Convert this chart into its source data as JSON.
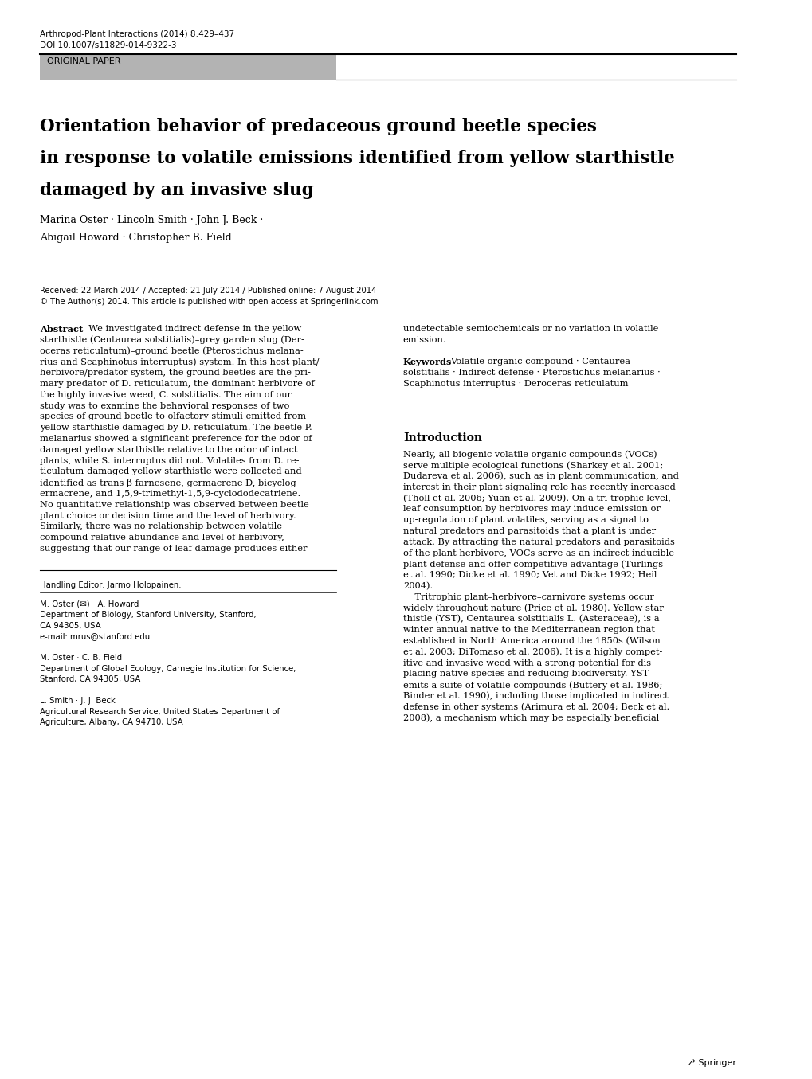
{
  "journal_line1": "Arthropod-Plant Interactions (2014) 8:429–437",
  "journal_line2": "DOI 10.1007/s11829-014-9322-3",
  "section_label": "ORIGINAL PAPER",
  "title_line1": "Orientation behavior of predaceous ground beetle species",
  "title_line2": "in response to volatile emissions identified from yellow starthistle",
  "title_line3": "damaged by an invasive slug",
  "authors_line1": "Marina Oster · Lincoln Smith · John J. Beck ·",
  "authors_line2": "Abigail Howard · Christopher B. Field",
  "received": "Received: 22 March 2014 / Accepted: 21 July 2014 / Published online: 7 August 2014",
  "copyright": "© The Author(s) 2014. This article is published with open access at Springerlink.com",
  "abstract_lines_left": [
    "starthistle (Centaurea solstitialis)–grey garden slug (Der-",
    "oceras reticulatum)–ground beetle (Pterostichus melana-",
    "rius and Scaphinotus interruptus) system. In this host plant/",
    "herbivore/predator system, the ground beetles are the pri-",
    "mary predator of D. reticulatum, the dominant herbivore of",
    "the highly invasive weed, C. solstitialis. The aim of our",
    "study was to examine the behavioral responses of two",
    "species of ground beetle to olfactory stimuli emitted from",
    "yellow starthistle damaged by D. reticulatum. The beetle P.",
    "melanarius showed a significant preference for the odor of",
    "damaged yellow starthistle relative to the odor of intact",
    "plants, while S. interruptus did not. Volatiles from D. re-",
    "ticulatum-damaged yellow starthistle were collected and",
    "identified as trans-β-farnesene, germacrene D, bicyclog-",
    "ermacrene, and 1,5,9-trimethyl-1,5,9-cyclododecatriene.",
    "No quantitative relationship was observed between beetle",
    "plant choice or decision time and the level of herbivory.",
    "Similarly, there was no relationship between volatile",
    "compound relative abundance and level of herbivory,",
    "suggesting that our range of leaf damage produces either"
  ],
  "abstract_first_line": "We investigated indirect defense in the yellow",
  "abstract_right_lines": [
    "undetectable semiochemicals or no variation in volatile",
    "emission."
  ],
  "keywords_lines": [
    "Volatile organic compound · Centaurea",
    "solstitialis · Indirect defense · Pterostichus melanarius ·",
    "Scaphinotus interruptus · Deroceras reticulatum"
  ],
  "intro_lines": [
    "Nearly, all biogenic volatile organic compounds (VOCs)",
    "serve multiple ecological functions (Sharkey et al. 2001;",
    "Dudareva et al. 2006), such as in plant communication, and",
    "interest in their plant signaling role has recently increased",
    "(Tholl et al. 2006; Yuan et al. 2009). On a tri-trophic level,",
    "leaf consumption by herbivores may induce emission or",
    "up-regulation of plant volatiles, serving as a signal to",
    "natural predators and parasitoids that a plant is under",
    "attack. By attracting the natural predators and parasitoids",
    "of the plant herbivore, VOCs serve as an indirect inducible",
    "plant defense and offer competitive advantage (Turlings",
    "et al. 1990; Dicke et al. 1990; Vet and Dicke 1992; Heil",
    "2004).",
    "    Tritrophic plant–herbivore–carnivore systems occur",
    "widely throughout nature (Price et al. 1980). Yellow star-",
    "thistle (YST), Centaurea solstitialis L. (Asteraceae), is a",
    "winter annual native to the Mediterranean region that",
    "established in North America around the 1850s (Wilson",
    "et al. 2003; DiTomaso et al. 2006). It is a highly compet-",
    "itive and invasive weed with a strong potential for dis-",
    "placing native species and reducing biodiversity. YST",
    "emits a suite of volatile compounds (Buttery et al. 1986;",
    "Binder et al. 1990), including those implicated in indirect",
    "defense in other systems (Arimura et al. 2004; Beck et al.",
    "2008), a mechanism which may be especially beneficial"
  ],
  "handling_editor": "Handling Editor: Jarmo Holopainen.",
  "affil_lines": [
    "M. Oster (✉) · A. Howard",
    "Department of Biology, Stanford University, Stanford,",
    "CA 94305, USA",
    "e-mail: mrus@stanford.edu",
    "",
    "M. Oster · C. B. Field",
    "Department of Global Ecology, Carnegie Institution for Science,",
    "Stanford, CA 94305, USA",
    "",
    "L. Smith · J. J. Beck",
    "Agricultural Research Service, United States Department of",
    "Agriculture, Albany, CA 94710, USA"
  ],
  "springer_text": "⎇ Springer",
  "bg_color": "#ffffff",
  "section_bg": "#b3b3b3",
  "link_color": "#1a1aff"
}
